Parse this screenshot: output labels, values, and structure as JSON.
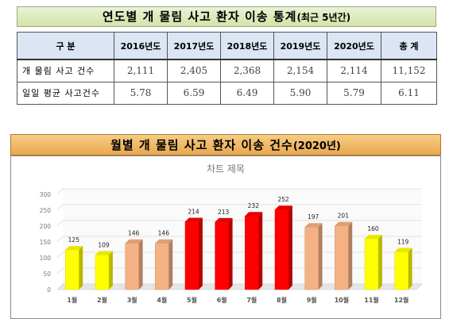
{
  "banner": {
    "title": "연도별 개 물림 사고 환자 이송 통계",
    "subtitle": "(최근 5년간)"
  },
  "table": {
    "headers": [
      "구   분",
      "2016년도",
      "2017년도",
      "2018년도",
      "2019년도",
      "2020년도",
      "총   계"
    ],
    "rows": [
      {
        "label": "개 물림 사고 건수",
        "values": [
          "2,111",
          "2,405",
          "2,368",
          "2,154",
          "2,114",
          "11,152"
        ]
      },
      {
        "label": "일일 평균 사고건수",
        "values": [
          "5.78",
          "6.59",
          "6.49",
          "5.90",
          "5.79",
          "6.11"
        ]
      }
    ]
  },
  "chart_header": {
    "title": "월별 개 물림 사고 환자 이송 건수",
    "subtitle": "(2020년)"
  },
  "chart_data": {
    "type": "bar",
    "title": "차트 제목",
    "categories": [
      "1월",
      "2월",
      "3월",
      "4월",
      "5월",
      "6월",
      "7월",
      "8월",
      "9월",
      "10월",
      "11월",
      "12월"
    ],
    "values": [
      125,
      109,
      146,
      146,
      214,
      213,
      232,
      252,
      197,
      201,
      160,
      119
    ],
    "ylim": [
      0,
      300
    ],
    "yticks": [
      0,
      50,
      100,
      150,
      200,
      250,
      300
    ],
    "grid": true,
    "bar_colors": [
      "#ffff00",
      "#ffff00",
      "#f4b183",
      "#f4b183",
      "#ff0000",
      "#ff0000",
      "#ff0000",
      "#ff0000",
      "#f4b183",
      "#f4b183",
      "#ffff00",
      "#ffff00"
    ]
  }
}
